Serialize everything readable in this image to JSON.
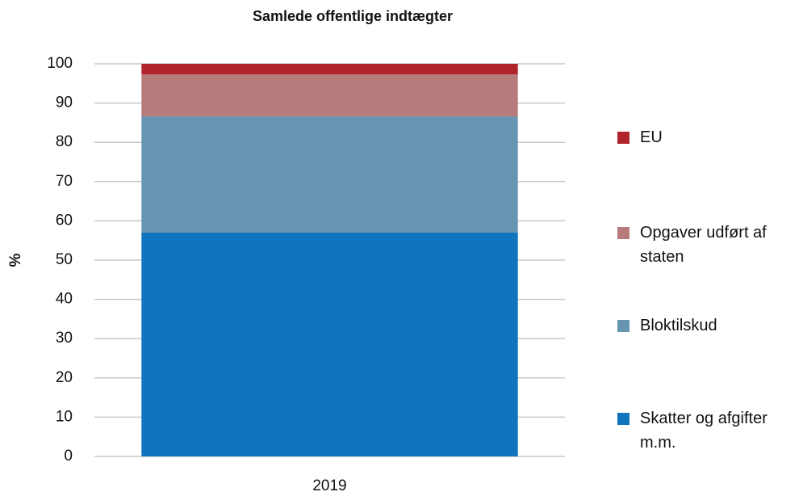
{
  "chart_data": {
    "type": "stacked_bar",
    "title": "Samlede offentlige indtægter",
    "y_label": "%",
    "categories": [
      "2019"
    ],
    "series": [
      {
        "name": "Skatter og afgifter m.m.",
        "color": "#1174be",
        "values": [
          57.0
        ]
      },
      {
        "name": "Bloktilskud",
        "color": "#6794b0",
        "values": [
          29.6
        ]
      },
      {
        "name": "Opgaver udført af staten",
        "color": "#b77b7b",
        "values": [
          10.7
        ]
      },
      {
        "name": "EU",
        "color": "#b0242b",
        "values": [
          2.7
        ]
      }
    ],
    "ylim": [
      0,
      100
    ],
    "yticks": [
      0,
      10,
      20,
      30,
      40,
      50,
      60,
      70,
      80,
      90,
      100
    ],
    "grid": true,
    "legend": "right"
  }
}
